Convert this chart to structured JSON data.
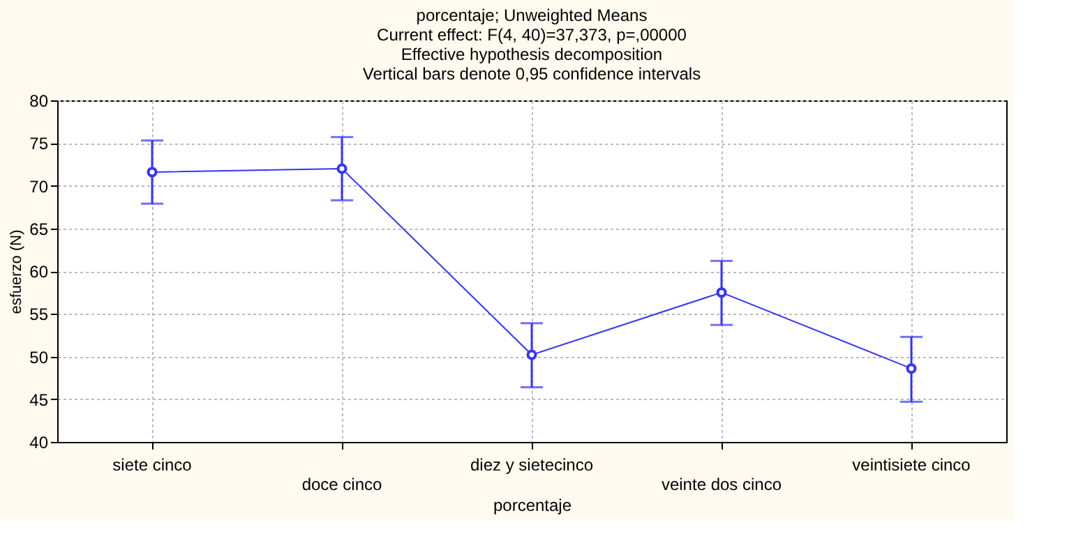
{
  "chart_data": {
    "type": "line",
    "title": "porcentaje; Unweighted Means",
    "subtitle": "Current effect: F(4, 40)=37,373, p=,00000\nEffective hypothesis decomposition\nVertical bars denote 0,95 confidence intervals",
    "xlabel": "porcentaje",
    "ylabel": "esfuerzo (N)",
    "categories": [
      "siete cinco",
      "doce cinco",
      "diez y sietecinco",
      "veinte dos cinco",
      "veintisiete cinco"
    ],
    "series": [
      {
        "color": "#3333ff",
        "values": [
          71.6,
          72.0,
          50.2,
          57.5,
          48.6
        ],
        "errors": [
          [
            67.9,
            75.3
          ],
          [
            68.3,
            75.7
          ],
          [
            46.4,
            53.9
          ],
          [
            53.7,
            61.2
          ],
          [
            44.7,
            52.3
          ]
        ]
      }
    ],
    "ylim": [
      40,
      80
    ],
    "yticks": [
      40,
      45,
      50,
      55,
      60,
      65,
      70,
      75,
      80
    ],
    "grid": true,
    "marker": "circle",
    "line_style": "solid"
  }
}
